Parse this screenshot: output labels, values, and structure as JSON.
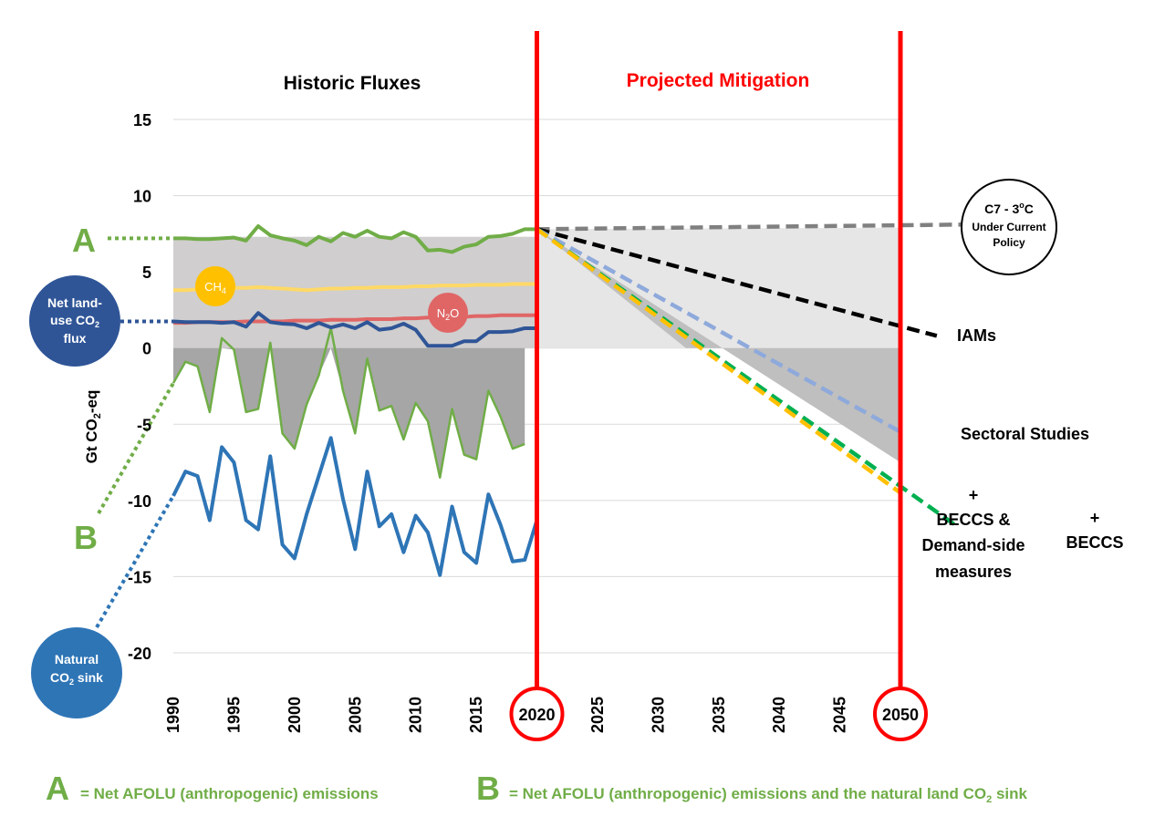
{
  "chart_data": {
    "type": "line",
    "ylabel": "Gt CO₂-eq",
    "ylim": [
      -20,
      15
    ],
    "yticks": [
      -20,
      -15,
      -10,
      -5,
      0,
      5,
      10,
      15
    ],
    "ytick_labels": [
      "-20",
      "-15",
      "-10",
      "-5",
      "0",
      "5",
      "10",
      "15"
    ],
    "xlim": [
      1990,
      2050
    ],
    "xticks": [
      1990,
      1995,
      2000,
      2005,
      2010,
      2015,
      2020,
      2025,
      2030,
      2035,
      2040,
      2045,
      2050
    ],
    "xtick_labels": [
      "1990",
      "1995",
      "2000",
      "2005",
      "2010",
      "2015",
      "2020",
      "2025",
      "2030",
      "2035",
      "2040",
      "2045",
      "2050"
    ],
    "highlighted_years": [
      2020,
      2050
    ],
    "grid": "horizontal",
    "sections": {
      "historic": "Historic Fluxes",
      "projected": "Projected Mitigation"
    },
    "historic_series": {
      "years": [
        1990,
        1991,
        1992,
        1993,
        1994,
        1995,
        1996,
        1997,
        1998,
        1999,
        2000,
        2001,
        2002,
        2003,
        2004,
        2005,
        2006,
        2007,
        2008,
        2009,
        2010,
        2011,
        2012,
        2013,
        2014,
        2015,
        2016,
        2017,
        2018,
        2019,
        2020
      ],
      "net_afolu": [
        7.2,
        7.2,
        7.15,
        7.15,
        7.2,
        7.25,
        7.05,
        8.0,
        7.4,
        7.2,
        7.05,
        6.75,
        7.3,
        7.0,
        7.55,
        7.3,
        7.7,
        7.3,
        7.2,
        7.6,
        7.3,
        6.4,
        6.45,
        6.3,
        6.65,
        6.8,
        7.3,
        7.35,
        7.5,
        7.8,
        7.8
      ],
      "ch4": [
        3.8,
        3.8,
        3.85,
        3.9,
        3.9,
        3.95,
        3.95,
        4.0,
        3.95,
        3.9,
        3.85,
        3.8,
        3.85,
        3.9,
        3.9,
        3.95,
        3.95,
        4.0,
        4.0,
        4.0,
        4.05,
        4.05,
        4.1,
        4.1,
        4.1,
        4.15,
        4.15,
        4.15,
        4.2,
        4.2,
        4.2
      ],
      "n2o": [
        1.65,
        1.65,
        1.7,
        1.7,
        1.7,
        1.7,
        1.75,
        1.75,
        1.75,
        1.75,
        1.8,
        1.8,
        1.8,
        1.85,
        1.85,
        1.85,
        1.9,
        1.9,
        1.9,
        1.95,
        1.95,
        2.0,
        2.0,
        2.05,
        2.05,
        2.1,
        2.1,
        2.15,
        2.15,
        2.15,
        2.15
      ],
      "net_land_use_co2": [
        1.75,
        1.7,
        1.7,
        1.7,
        1.65,
        1.7,
        1.4,
        2.3,
        1.7,
        1.6,
        1.55,
        1.3,
        1.65,
        1.35,
        1.55,
        1.3,
        1.7,
        1.2,
        1.3,
        1.6,
        1.2,
        0.15,
        0.15,
        0.15,
        0.45,
        0.45,
        1.05,
        1.05,
        1.1,
        1.3,
        1.3
      ],
      "net_afolu_plus_sink": [
        -2.3,
        -0.9,
        -1.2,
        -4.2,
        0.65,
        -0.1,
        -4.2,
        -4.0,
        0.35,
        -5.6,
        -6.6,
        -3.7,
        -1.8,
        1.3,
        -2.8,
        -5.6,
        -0.7,
        -4.1,
        -3.8,
        -6.0,
        -3.6,
        -4.8,
        -8.5,
        -4.0,
        -7.0,
        -7.3,
        -2.8,
        -4.5,
        -6.6,
        -6.3,
        -3.7
      ],
      "natural_co2_sink": [
        -9.7,
        -8.1,
        -8.4,
        -11.3,
        -6.5,
        -7.5,
        -11.3,
        -11.9,
        -7.1,
        -12.9,
        -13.8,
        -10.9,
        -8.4,
        -5.9,
        -9.9,
        -13.2,
        -8.1,
        -11.7,
        -10.9,
        -13.4,
        -11.0,
        -12.1,
        -14.9,
        -10.4,
        -13.4,
        -14.1,
        -9.6,
        -11.6,
        -14.0,
        -13.9,
        -11.3
      ]
    },
    "shaded_regions": {
      "historic_positive_top": 7.3,
      "projected_current_policy_start": 7.8,
      "projected_current_policy_end": 7.9
    },
    "projections": [
      {
        "name": "C7 - 3°C Under Current Policy",
        "start": [
          2020,
          7.8
        ],
        "end": [
          2055,
          8.1
        ],
        "color": "#808080"
      },
      {
        "name": "IAMs",
        "start": [
          2020,
          7.8
        ],
        "end": [
          2053,
          0.8
        ],
        "color": "#000000"
      },
      {
        "name": "Sectoral Studies",
        "start": [
          2020,
          7.8
        ],
        "end": [
          2050,
          -5.5
        ],
        "color": "#8EA9DB"
      },
      {
        "name": "+ BECCS",
        "start": [
          2020,
          7.8
        ],
        "end": [
          2054.5,
          -11.6
        ],
        "color": "#00B050"
      },
      {
        "name": "+ BECCS & Demand-side measures",
        "start": [
          2020,
          7.8
        ],
        "end": [
          2050,
          -9.5
        ],
        "color": "#FFC000"
      }
    ],
    "series_labels": {
      "ch4": "CH4",
      "n2o": "N2O",
      "net_land_use": "Net land-use CO2 flux",
      "natural_sink": "Natural CO2 sink"
    }
  },
  "labels": {
    "historic": "Historic Fluxes",
    "projected": "Projected Mitigation",
    "ylabel_main": "Gt CO",
    "ylabel_sub": "2",
    "ylabel_tail": "-eq",
    "A_letter": "A",
    "B_letter": "B",
    "ch4_main": "CH",
    "ch4_sub": "4",
    "n2o_main": "N",
    "n2o_sub": "2",
    "n2o_tail": "O",
    "netland_line1": "Net land-",
    "netland_line2a": "use CO",
    "netland_line2b": "2",
    "netland_line3": "flux",
    "natsink_line1": "Natural",
    "natsink_line2a": "CO",
    "natsink_line2b": "2",
    "natsink_line2c": " sink",
    "c7_line1a": "C7 - 3",
    "c7_line1b": "o",
    "c7_line1c": "C",
    "c7_line2": "Under Current",
    "c7_line3": "Policy",
    "iams": "IAMs",
    "sectoral": "Sectoral Studies",
    "beccs_plus": "+",
    "beccs": "BECCS",
    "beccs_ds_plus": "+",
    "beccs_ds_line1": "BECCS &",
    "beccs_ds_line2": "Demand-side",
    "beccs_ds_line3": "measures",
    "legend_A_letter": "A",
    "legend_A_text": "=  Net AFOLU (anthropogenic) emissions",
    "legend_B_letter": "B",
    "legend_B_text_a": "=  Net AFOLU (anthropogenic) emissions and the natural land CO",
    "legend_B_text_sub": "2",
    "legend_B_text_b": " sink"
  },
  "colors": {
    "green": "#70AD47",
    "dark_blue": "#2F5597",
    "mid_blue": "#2E75B6",
    "yellow": "#FFD966",
    "red_line": "#E06666",
    "red_marker": "#FF0000",
    "light_gray": "#D0CECE",
    "lighter_gray": "#E7E6E6",
    "mid_gray": "#BFBFBF",
    "dark_gray": "#A6A6A6"
  }
}
